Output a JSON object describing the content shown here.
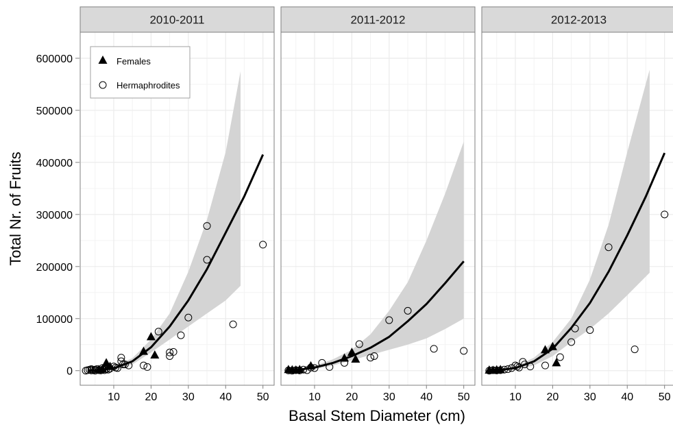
{
  "chart_data": {
    "type": "scatter",
    "xlabel": "Basal Stem Diameter (cm)",
    "ylabel": "Total Nr. of Fruits",
    "xlim": [
      1,
      53
    ],
    "ylim": [
      -28000,
      650000
    ],
    "x_ticks": [
      10,
      20,
      30,
      40,
      50
    ],
    "y_ticks": [
      0,
      100000,
      200000,
      300000,
      400000,
      500000,
      600000
    ],
    "grid": true,
    "legend": {
      "placement": "top-left",
      "entries": [
        {
          "label": "Females",
          "marker": "filled-triangle"
        },
        {
          "label": "Hermaphrodites",
          "marker": "open-circle"
        }
      ]
    },
    "colors": {
      "fit_line": "#000000",
      "ribbon": "#d4d4d4",
      "strip": "#d9d9d9",
      "grid": "#ebebeb"
    },
    "panels": [
      {
        "title": "2010-2011",
        "females": [
          [
            8,
            15000
          ],
          [
            9,
            8000
          ],
          [
            18,
            37000
          ],
          [
            20,
            65000
          ],
          [
            21,
            30000
          ],
          [
            6,
            2000
          ],
          [
            7,
            3000
          ]
        ],
        "hermaphrodites": [
          [
            2.5,
            0
          ],
          [
            3,
            1000
          ],
          [
            3.5,
            2000
          ],
          [
            4,
            3000
          ],
          [
            4,
            500
          ],
          [
            4.5,
            1500
          ],
          [
            5,
            2000
          ],
          [
            5,
            0
          ],
          [
            5.5,
            3000
          ],
          [
            6,
            1000
          ],
          [
            6.5,
            500
          ],
          [
            7,
            2000
          ],
          [
            7,
            5000
          ],
          [
            7.5,
            1000
          ],
          [
            8,
            3000
          ],
          [
            8.5,
            2000
          ],
          [
            9,
            4000
          ],
          [
            10,
            8000
          ],
          [
            10.5,
            6000
          ],
          [
            11,
            5000
          ],
          [
            12,
            25000
          ],
          [
            12,
            18000
          ],
          [
            12.5,
            12000
          ],
          [
            13,
            12000
          ],
          [
            14,
            10000
          ],
          [
            18,
            10000
          ],
          [
            19,
            7000
          ],
          [
            22,
            75000
          ],
          [
            25,
            35000
          ],
          [
            25,
            28000
          ],
          [
            26,
            36000
          ],
          [
            28,
            68000
          ],
          [
            30,
            102000
          ],
          [
            35,
            278000
          ],
          [
            35,
            213000
          ],
          [
            42,
            89000
          ],
          [
            50,
            242000
          ]
        ],
        "fit": {
          "x": [
            3,
            5,
            10,
            15,
            20,
            25,
            30,
            35,
            40,
            45,
            50
          ],
          "y": [
            0,
            500,
            4500,
            18000,
            45000,
            85000,
            135000,
            195000,
            265000,
            335000,
            415000
          ]
        },
        "ribbon": {
          "x": [
            3,
            10,
            15,
            20,
            25,
            30,
            35,
            40,
            44
          ],
          "lower": [
            0,
            1000,
            12000,
            35000,
            60000,
            85000,
            110000,
            135000,
            163000
          ],
          "upper": [
            0,
            8000,
            24000,
            60000,
            110000,
            190000,
            290000,
            420000,
            575000
          ]
        }
      },
      {
        "title": "2011-2012",
        "females": [
          [
            3,
            2000
          ],
          [
            4,
            1500
          ],
          [
            5,
            1000
          ],
          [
            6,
            2000
          ],
          [
            9,
            9000
          ],
          [
            18,
            24000
          ],
          [
            20,
            35000
          ],
          [
            21,
            22000
          ]
        ],
        "hermaphrodites": [
          [
            3,
            500
          ],
          [
            4,
            0
          ],
          [
            5,
            1000
          ],
          [
            6,
            500
          ],
          [
            7,
            2000
          ],
          [
            8,
            1000
          ],
          [
            9,
            6000
          ],
          [
            10,
            5000
          ],
          [
            12,
            15000
          ],
          [
            14,
            7000
          ],
          [
            18,
            15000
          ],
          [
            22,
            51000
          ],
          [
            25,
            25000
          ],
          [
            26,
            28000
          ],
          [
            30,
            97000
          ],
          [
            35,
            115000
          ],
          [
            42,
            42000
          ],
          [
            50,
            38000
          ]
        ],
        "fit": {
          "x": [
            3,
            5,
            10,
            15,
            20,
            25,
            30,
            35,
            40,
            45,
            50
          ],
          "y": [
            0,
            1000,
            6000,
            15000,
            28000,
            44000,
            65000,
            95000,
            128000,
            168000,
            210000
          ]
        },
        "ribbon": {
          "x": [
            3,
            10,
            15,
            20,
            25,
            30,
            35,
            40,
            45,
            50
          ],
          "lower": [
            0,
            3000,
            10000,
            20000,
            30000,
            40000,
            50000,
            62000,
            80000,
            100000
          ],
          "upper": [
            0,
            9000,
            22000,
            40000,
            70000,
            115000,
            170000,
            250000,
            340000,
            440000
          ]
        }
      },
      {
        "title": "2012-2013",
        "females": [
          [
            3,
            1000
          ],
          [
            4,
            500
          ],
          [
            5,
            1500
          ],
          [
            6,
            2000
          ],
          [
            18,
            40000
          ],
          [
            20,
            46000
          ],
          [
            21,
            15000
          ]
        ],
        "hermaphrodites": [
          [
            3,
            0
          ],
          [
            4,
            1000
          ],
          [
            5,
            500
          ],
          [
            6,
            1000
          ],
          [
            7,
            2000
          ],
          [
            8,
            3000
          ],
          [
            9,
            5000
          ],
          [
            10,
            10000
          ],
          [
            10.5,
            8000
          ],
          [
            11,
            6000
          ],
          [
            12,
            17000
          ],
          [
            12.5,
            12000
          ],
          [
            14,
            8000
          ],
          [
            18,
            10000
          ],
          [
            22,
            26000
          ],
          [
            25,
            55000
          ],
          [
            26,
            81000
          ],
          [
            30,
            78000
          ],
          [
            35,
            237000
          ],
          [
            42,
            41000
          ],
          [
            50,
            300000
          ]
        ],
        "fit": {
          "x": [
            3,
            5,
            10,
            15,
            20,
            25,
            30,
            35,
            40,
            45,
            50
          ],
          "y": [
            0,
            500,
            5000,
            18000,
            42000,
            82000,
            130000,
            190000,
            260000,
            335000,
            418000
          ]
        },
        "ribbon": {
          "x": [
            3,
            10,
            15,
            20,
            25,
            30,
            35,
            40,
            46
          ],
          "lower": [
            0,
            2000,
            10000,
            28000,
            55000,
            80000,
            110000,
            145000,
            188000
          ],
          "upper": [
            0,
            8000,
            25000,
            55000,
            100000,
            175000,
            280000,
            420000,
            578000
          ]
        }
      }
    ]
  }
}
